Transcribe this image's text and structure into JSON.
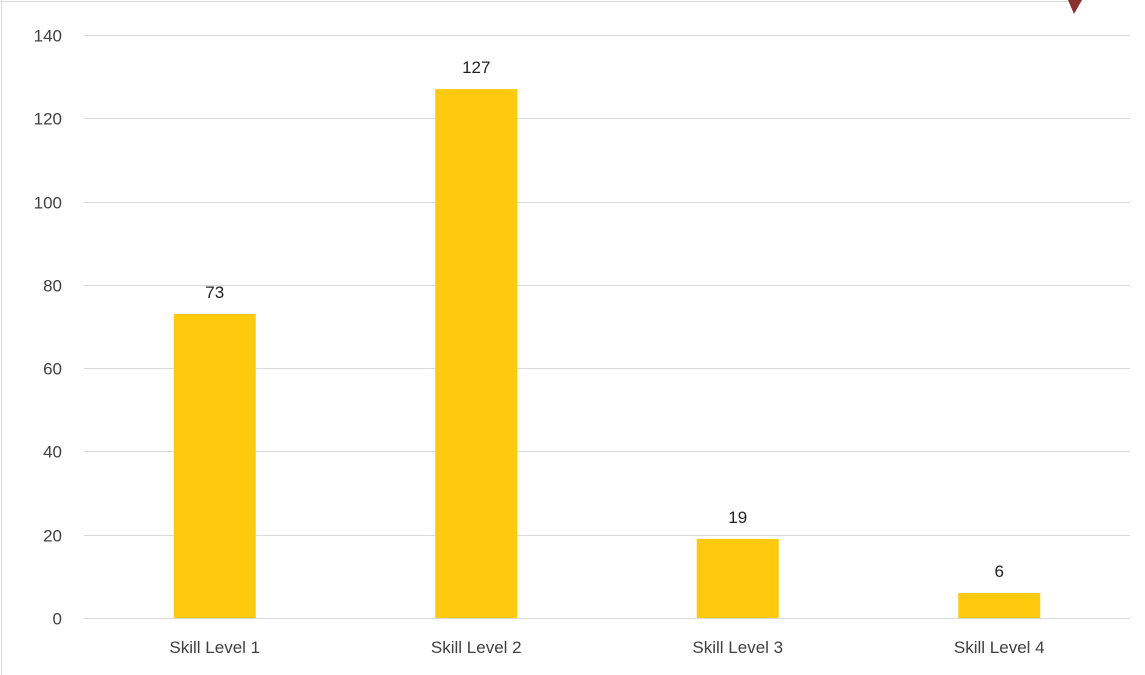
{
  "chart_data": {
    "type": "bar",
    "categories": [
      "Skill Level 1",
      "Skill Level 2",
      "Skill Level 3",
      "Skill Level 4"
    ],
    "values": [
      73,
      127,
      19,
      6
    ],
    "data_labels": [
      "73",
      "127",
      "19",
      "6"
    ],
    "title": "",
    "xlabel": "",
    "ylabel": "",
    "ylim": [
      0,
      140
    ],
    "yticks": [
      0,
      20,
      40,
      60,
      80,
      100,
      120,
      140
    ],
    "grid": true,
    "legend": "none",
    "colors": {
      "bar": "#FFC90E",
      "gridline": "#D9D9D9",
      "axis_text": "#404040",
      "border": "#D9D9D9",
      "corner_accent": "#8B2E2E"
    }
  }
}
